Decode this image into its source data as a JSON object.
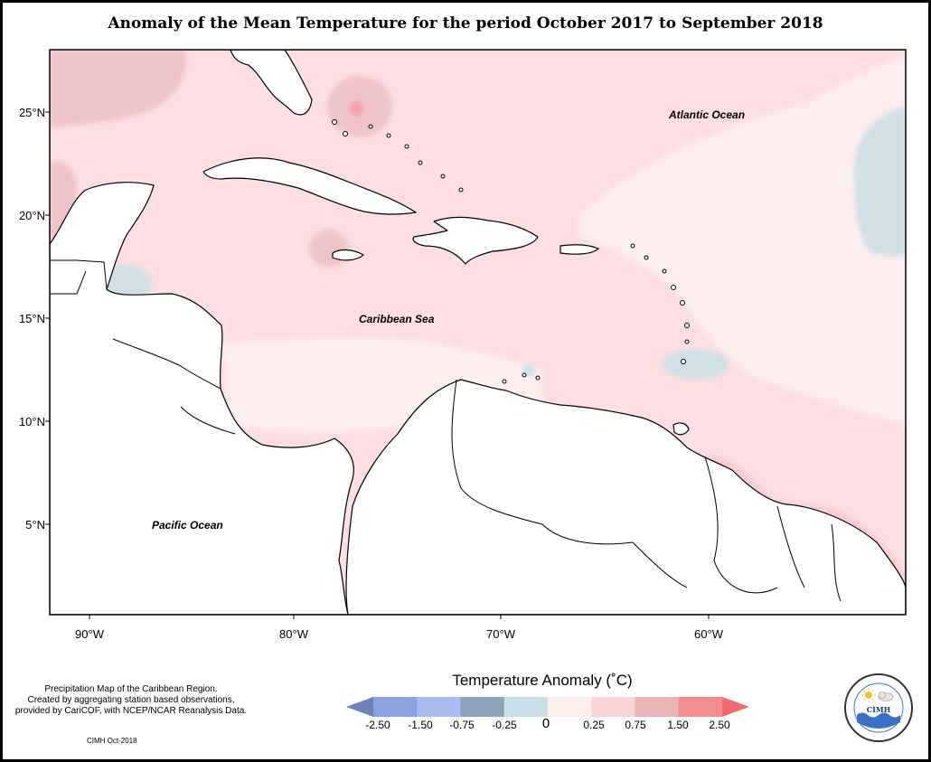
{
  "title": "Anomaly of the Mean Temperature for the period October 2017 to September 2018",
  "axes": {
    "lat_ticks": [
      "25°N",
      "20°N",
      "15°N",
      "10°N",
      "5°N"
    ],
    "lon_ticks": [
      "90°W",
      "80°W",
      "70°W",
      "60°W"
    ]
  },
  "regions": {
    "atlantic": "Atlantic Ocean",
    "caribbean": "Caribbean Sea",
    "pacific": "Pacific Ocean"
  },
  "legend": {
    "title": "Temperature Anomaly (˚C)",
    "ticks": [
      "-2.50",
      "-1.50",
      "-0.75",
      "-0.25",
      "0",
      "0.25",
      "0.75",
      "1.50",
      "2.50"
    ],
    "colors": [
      "#6e82b8",
      "#8aa2e0",
      "#a9bdf2",
      "#8ba3b8",
      "#c9dfe5",
      "#fdeef0",
      "#f8d3d8",
      "#e9b3b8",
      "#f08e92",
      "#f06a70"
    ]
  },
  "source_note": {
    "lines": [
      "Precipitation Map of the Caribbean Region.",
      "Created by aggregating station based observations,",
      "provided by CariCOF, with NCEP/NCAR Reanalysis Data."
    ]
  },
  "credit": "CIMH Oct-2018",
  "logo": {
    "text": "CIMH",
    "icon": "cimh-sun-cloud-wave-logo"
  }
}
